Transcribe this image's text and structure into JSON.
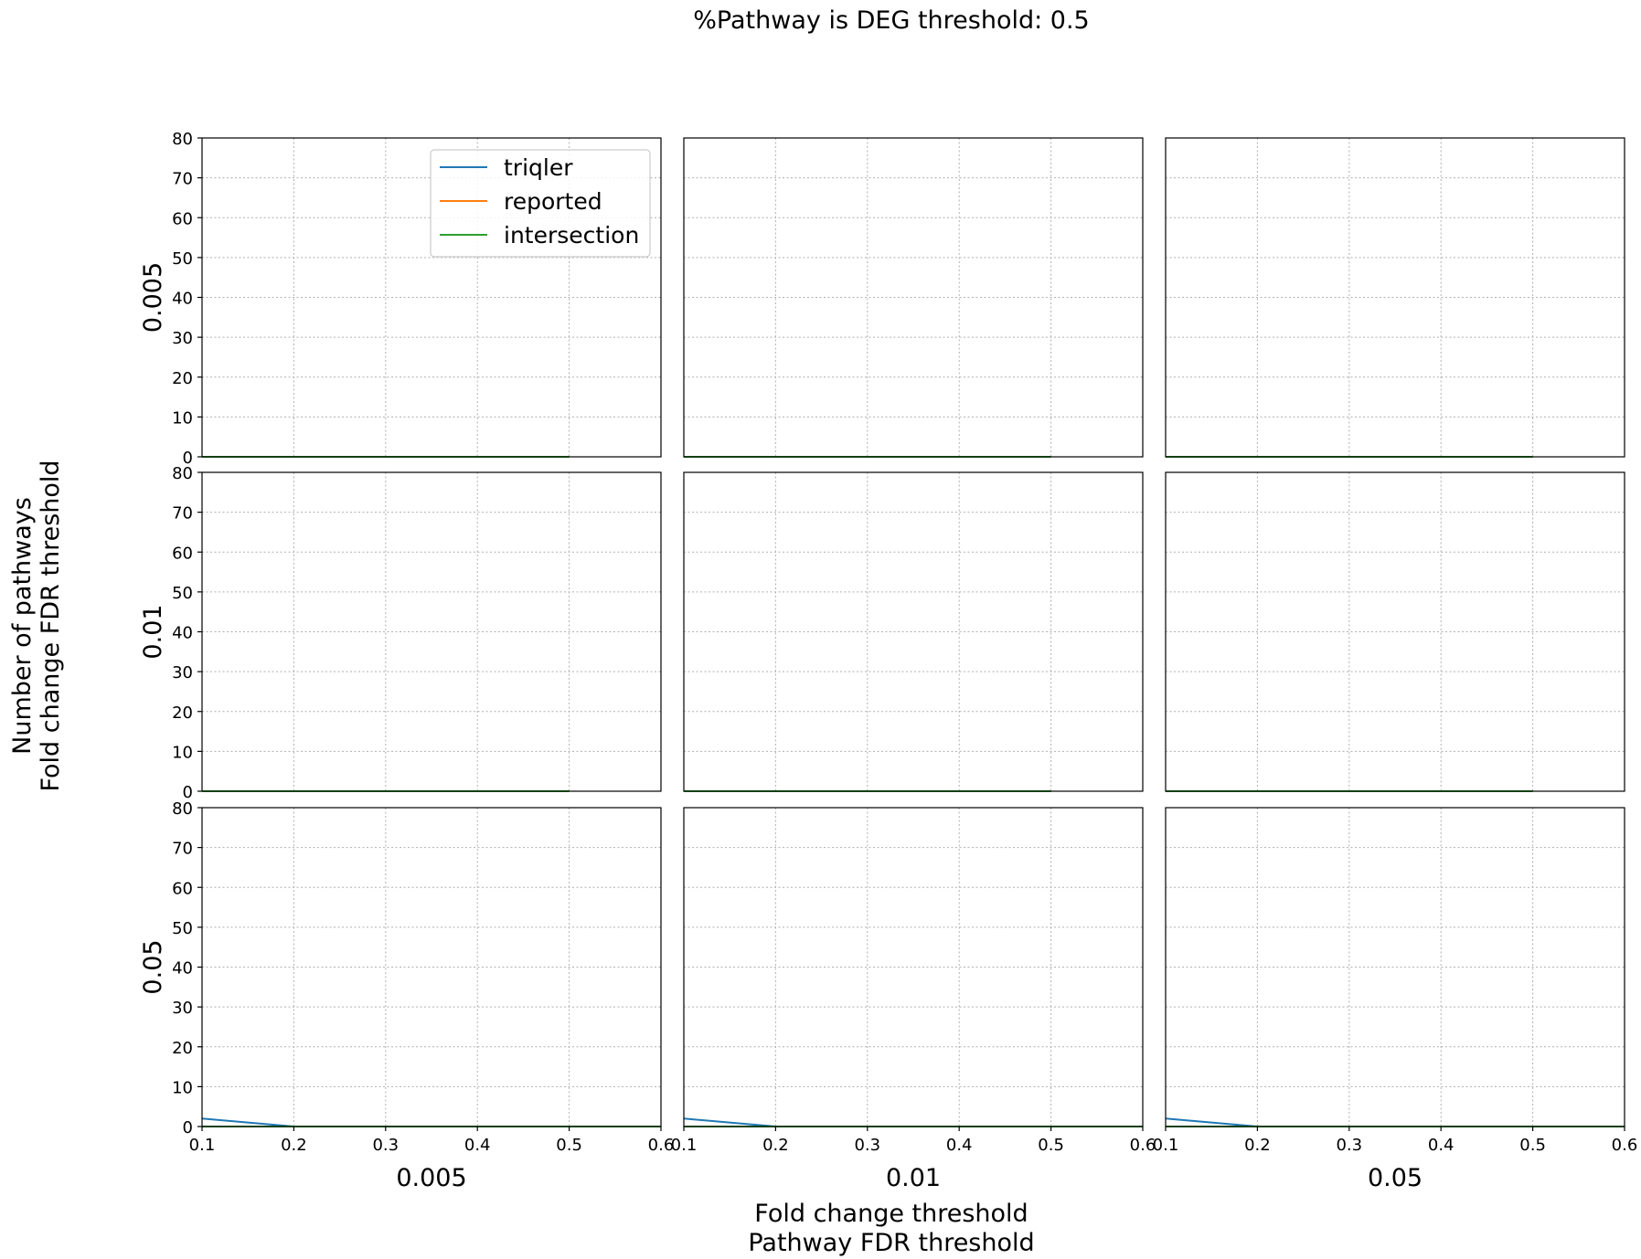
{
  "figure": {
    "suptitle": "%Pathway is DEG threshold: 0.5",
    "supxlabel": [
      "Fold change threshold",
      "Pathway FDR threshold"
    ],
    "supylabel": [
      "Number of pathways",
      "Fold change FDR threshold"
    ]
  },
  "colors": {
    "triqler": "#1f77b4",
    "reported": "#ff7f0e",
    "intersection": "#2ca02c",
    "grid": "#b0b0b0",
    "axes": "#000000"
  },
  "legend": {
    "location": "upper-center of top-left panel",
    "entries": [
      "triqler",
      "reported",
      "intersection"
    ]
  },
  "chart_data": {
    "type": "line",
    "layout": "3x3 small multiples",
    "row_labels": [
      "0.005",
      "0.01",
      "0.05"
    ],
    "col_labels": [
      "0.005",
      "0.01",
      "0.05"
    ],
    "xlim": [
      0.1,
      0.6
    ],
    "ylim": [
      0,
      80
    ],
    "xticks": [
      "0.1",
      "0.2",
      "0.3",
      "0.4",
      "0.5",
      "0.6"
    ],
    "yticks": [
      "0",
      "10",
      "20",
      "30",
      "40",
      "50",
      "60",
      "70",
      "80"
    ],
    "grid": true,
    "panels": [
      {
        "row": 0,
        "col": 0,
        "series": [
          {
            "name": "triqler",
            "x": [
              0.1,
              0.2,
              0.3,
              0.4,
              0.5
            ],
            "y": [
              0,
              0,
              0,
              0,
              0
            ]
          },
          {
            "name": "reported",
            "x": [
              0.1,
              0.2,
              0.3,
              0.4,
              0.5
            ],
            "y": [
              0,
              0,
              0,
              0,
              0
            ]
          },
          {
            "name": "intersection",
            "x": [
              0.1,
              0.2,
              0.3,
              0.4,
              0.5
            ],
            "y": [
              0,
              0,
              0,
              0,
              0
            ]
          }
        ]
      },
      {
        "row": 0,
        "col": 1,
        "series": [
          {
            "name": "triqler",
            "x": [
              0.1,
              0.2,
              0.3,
              0.4,
              0.5
            ],
            "y": [
              0,
              0,
              0,
              0,
              0
            ]
          },
          {
            "name": "reported",
            "x": [
              0.1,
              0.2,
              0.3,
              0.4,
              0.5
            ],
            "y": [
              0,
              0,
              0,
              0,
              0
            ]
          },
          {
            "name": "intersection",
            "x": [
              0.1,
              0.2,
              0.3,
              0.4,
              0.5
            ],
            "y": [
              0,
              0,
              0,
              0,
              0
            ]
          }
        ]
      },
      {
        "row": 0,
        "col": 2,
        "series": [
          {
            "name": "triqler",
            "x": [
              0.1,
              0.2,
              0.3,
              0.4,
              0.5
            ],
            "y": [
              0,
              0,
              0,
              0,
              0
            ]
          },
          {
            "name": "reported",
            "x": [
              0.1,
              0.2,
              0.3,
              0.4,
              0.5
            ],
            "y": [
              0,
              0,
              0,
              0,
              0
            ]
          },
          {
            "name": "intersection",
            "x": [
              0.1,
              0.2,
              0.3,
              0.4,
              0.5
            ],
            "y": [
              0,
              0,
              0,
              0,
              0
            ]
          }
        ]
      },
      {
        "row": 1,
        "col": 0,
        "series": [
          {
            "name": "triqler",
            "x": [
              0.1,
              0.2,
              0.3,
              0.4,
              0.5
            ],
            "y": [
              0,
              0,
              0,
              0,
              0
            ]
          },
          {
            "name": "reported",
            "x": [
              0.1,
              0.2,
              0.3,
              0.4,
              0.5
            ],
            "y": [
              0,
              0,
              0,
              0,
              0
            ]
          },
          {
            "name": "intersection",
            "x": [
              0.1,
              0.2,
              0.3,
              0.4,
              0.5
            ],
            "y": [
              0,
              0,
              0,
              0,
              0
            ]
          }
        ]
      },
      {
        "row": 1,
        "col": 1,
        "series": [
          {
            "name": "triqler",
            "x": [
              0.1,
              0.2,
              0.3,
              0.4,
              0.5
            ],
            "y": [
              0,
              0,
              0,
              0,
              0
            ]
          },
          {
            "name": "reported",
            "x": [
              0.1,
              0.2,
              0.3,
              0.4,
              0.5
            ],
            "y": [
              0,
              0,
              0,
              0,
              0
            ]
          },
          {
            "name": "intersection",
            "x": [
              0.1,
              0.2,
              0.3,
              0.4,
              0.5
            ],
            "y": [
              0,
              0,
              0,
              0,
              0
            ]
          }
        ]
      },
      {
        "row": 1,
        "col": 2,
        "series": [
          {
            "name": "triqler",
            "x": [
              0.1,
              0.2,
              0.3,
              0.4,
              0.5
            ],
            "y": [
              0,
              0,
              0,
              0,
              0
            ]
          },
          {
            "name": "reported",
            "x": [
              0.1,
              0.2,
              0.3,
              0.4,
              0.5
            ],
            "y": [
              0,
              0,
              0,
              0,
              0
            ]
          },
          {
            "name": "intersection",
            "x": [
              0.1,
              0.2,
              0.3,
              0.4,
              0.5
            ],
            "y": [
              0,
              0,
              0,
              0,
              0
            ]
          }
        ]
      },
      {
        "row": 2,
        "col": 0,
        "series": [
          {
            "name": "triqler",
            "x": [
              0.1,
              0.2,
              0.3,
              0.4,
              0.5,
              0.6
            ],
            "y": [
              2,
              0,
              0,
              0,
              0,
              0
            ]
          },
          {
            "name": "reported",
            "x": [
              0.1,
              0.2,
              0.3,
              0.4,
              0.5,
              0.6
            ],
            "y": [
              0,
              0,
              0,
              0,
              0,
              0
            ]
          },
          {
            "name": "intersection",
            "x": [
              0.1,
              0.2,
              0.3,
              0.4,
              0.5,
              0.6
            ],
            "y": [
              0,
              0,
              0,
              0,
              0,
              0
            ]
          }
        ]
      },
      {
        "row": 2,
        "col": 1,
        "series": [
          {
            "name": "triqler",
            "x": [
              0.1,
              0.2,
              0.3,
              0.4,
              0.5,
              0.6
            ],
            "y": [
              2,
              0,
              0,
              0,
              0,
              0
            ]
          },
          {
            "name": "reported",
            "x": [
              0.1,
              0.2,
              0.3,
              0.4,
              0.5,
              0.6
            ],
            "y": [
              0,
              0,
              0,
              0,
              0,
              0
            ]
          },
          {
            "name": "intersection",
            "x": [
              0.1,
              0.2,
              0.3,
              0.4,
              0.5,
              0.6
            ],
            "y": [
              0,
              0,
              0,
              0,
              0,
              0
            ]
          }
        ]
      },
      {
        "row": 2,
        "col": 2,
        "series": [
          {
            "name": "triqler",
            "x": [
              0.1,
              0.2,
              0.3,
              0.4,
              0.5,
              0.6
            ],
            "y": [
              2,
              0,
              0,
              0,
              0,
              0
            ]
          },
          {
            "name": "reported",
            "x": [
              0.1,
              0.2,
              0.3,
              0.4,
              0.5,
              0.6
            ],
            "y": [
              0,
              0,
              0,
              0,
              0,
              0
            ]
          },
          {
            "name": "intersection",
            "x": [
              0.1,
              0.2,
              0.3,
              0.4,
              0.5,
              0.6
            ],
            "y": [
              0,
              0,
              0,
              0,
              0,
              0
            ]
          }
        ]
      }
    ]
  }
}
